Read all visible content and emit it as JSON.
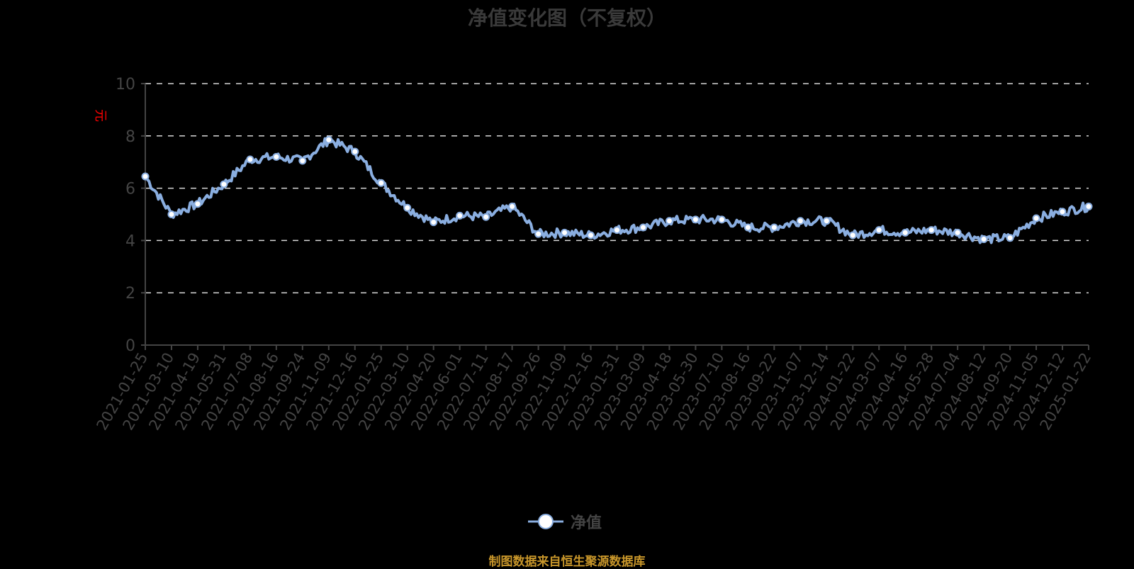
{
  "title": "净值变化图（不复权）",
  "unit_label": "元",
  "legend": {
    "items": [
      {
        "label": "净值",
        "color": "#8aaee0"
      }
    ]
  },
  "footer": {
    "source": "制图数据来自恒生聚源数据库"
  },
  "colors": {
    "background": "#000000",
    "line": "#8aaee0",
    "marker_fill": "#ffffff",
    "grid": "#d8d8d8",
    "axis": "#444444",
    "text": "#444444",
    "unit": "#ff0000",
    "footer": "#c8962a"
  },
  "chart_data": {
    "type": "line",
    "title": "净值变化图（不复权）",
    "xlabel": "",
    "ylabel": "元",
    "ylim": [
      0,
      10
    ],
    "yticks": [
      0,
      2,
      4,
      6,
      8,
      10
    ],
    "grid": true,
    "legend_position": "bottom",
    "categories": [
      "2021-01-25",
      "2021-03-10",
      "2021-04-19",
      "2021-05-31",
      "2021-07-08",
      "2021-08-16",
      "2021-09-24",
      "2021-11-09",
      "2021-12-16",
      "2022-01-25",
      "2022-03-10",
      "2022-04-20",
      "2022-06-01",
      "2022-07-11",
      "2022-08-17",
      "2022-09-26",
      "2022-11-09",
      "2022-12-16",
      "2023-01-31",
      "2023-03-09",
      "2023-04-18",
      "2023-05-30",
      "2023-07-10",
      "2023-08-16",
      "2023-09-22",
      "2023-11-07",
      "2023-12-14",
      "2024-01-22",
      "2024-03-07",
      "2024-04-16",
      "2024-05-28",
      "2024-07-04",
      "2024-08-12",
      "2024-09-20",
      "2024-11-05",
      "2024-12-12",
      "2025-01-22"
    ],
    "series": [
      {
        "name": "净值",
        "values": [
          6.45,
          5.0,
          5.4,
          6.15,
          7.1,
          7.2,
          7.05,
          7.85,
          7.4,
          6.2,
          5.25,
          4.7,
          4.95,
          4.9,
          5.3,
          4.25,
          4.3,
          4.2,
          4.4,
          4.5,
          4.75,
          4.8,
          4.8,
          4.5,
          4.5,
          4.75,
          4.75,
          4.2,
          4.4,
          4.3,
          4.4,
          4.3,
          4.05,
          4.1,
          4.85,
          5.1,
          5.3
        ]
      }
    ]
  }
}
